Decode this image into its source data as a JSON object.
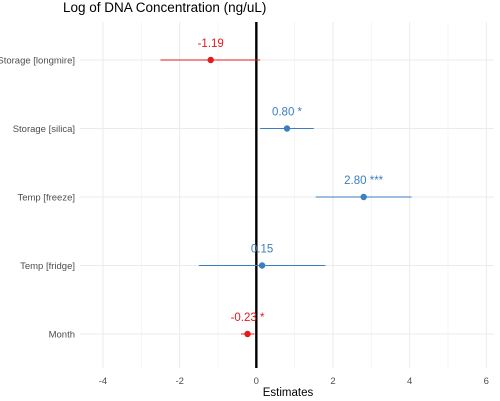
{
  "chart_data": {
    "type": "forest",
    "title": "Log of DNA Concentration (ng/uL)",
    "xlabel": "Estimates",
    "xlim": [
      -4.6,
      6.2
    ],
    "xticks": [
      -4,
      -2,
      0,
      2,
      4,
      6
    ],
    "xtick_labels": [
      "-4",
      "-2",
      "0",
      "2",
      "4",
      "6"
    ],
    "grid": true,
    "reference_line_x": 0,
    "colors": {
      "positive": "#3a7fc1",
      "negative": "#e41a1c",
      "zero_line": "#000000",
      "grid": "#ebebeb"
    },
    "terms": [
      {
        "label": "Storage [longmire]",
        "estimate": -1.19,
        "ci": [
          -2.5,
          0.1
        ],
        "text": "-1.19"
      },
      {
        "label": "Storage [silica]",
        "estimate": 0.8,
        "ci": [
          0.1,
          1.5
        ],
        "text": "0.80 *"
      },
      {
        "label": "Temp [freeze]",
        "estimate": 2.8,
        "ci": [
          1.55,
          4.05
        ],
        "text": "2.80 ***"
      },
      {
        "label": "Temp [fridge]",
        "estimate": 0.15,
        "ci": [
          -1.5,
          1.8
        ],
        "text": "0.15"
      },
      {
        "label": "Month",
        "estimate": -0.23,
        "ci": [
          -0.4,
          -0.05
        ],
        "text": "-0.23 *"
      }
    ]
  }
}
